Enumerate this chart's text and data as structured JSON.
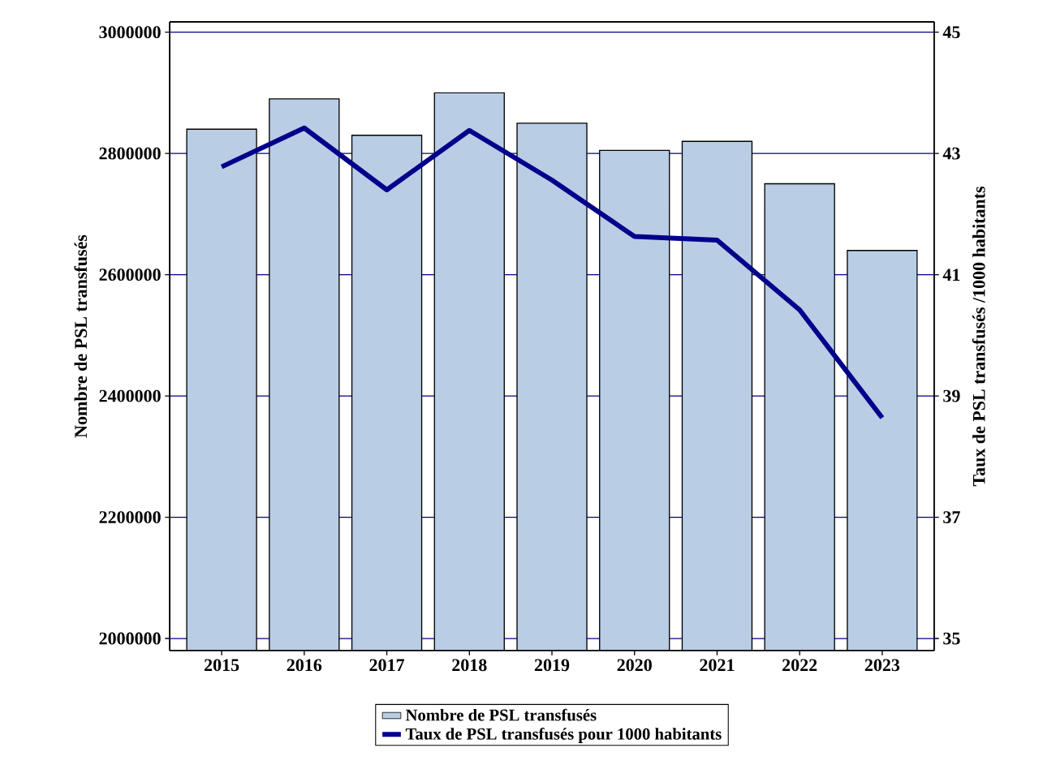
{
  "chart_data": {
    "type": "bar",
    "xlabel": null,
    "ylabel": "Nombre de PSL transfusés",
    "y2label": "Taux de PSL transfusés /1000 habitants",
    "categories": [
      "2015",
      "2016",
      "2017",
      "2018",
      "2019",
      "2020",
      "2021",
      "2022",
      "2023"
    ],
    "series": [
      {
        "name": "Nombre de PSL transfusés",
        "color": "#b9cde5",
        "values": [
          2840000,
          2890000,
          2830000,
          2900000,
          2850000,
          2805000,
          2820000,
          2750000,
          2640000
        ]
      },
      {
        "name": "Taux de PSL transfusés pour 1000 habitants",
        "type": "line",
        "axis": "y2",
        "color": "#00008b",
        "values": [
          42.78,
          43.42,
          42.4,
          43.38,
          42.56,
          41.63,
          41.57,
          40.42,
          38.64
        ]
      }
    ],
    "ylim": [
      1980000,
      3017000
    ],
    "yticks": [
      2000000,
      2200000,
      2400000,
      2600000,
      2800000,
      3000000
    ],
    "y2lim": [
      34.8,
      45.17
    ],
    "y2ticks": [
      35,
      37,
      39,
      41,
      43,
      45
    ],
    "grid": "y",
    "legend": "bottom",
    "marker": "none",
    "line_style": "solid"
  }
}
